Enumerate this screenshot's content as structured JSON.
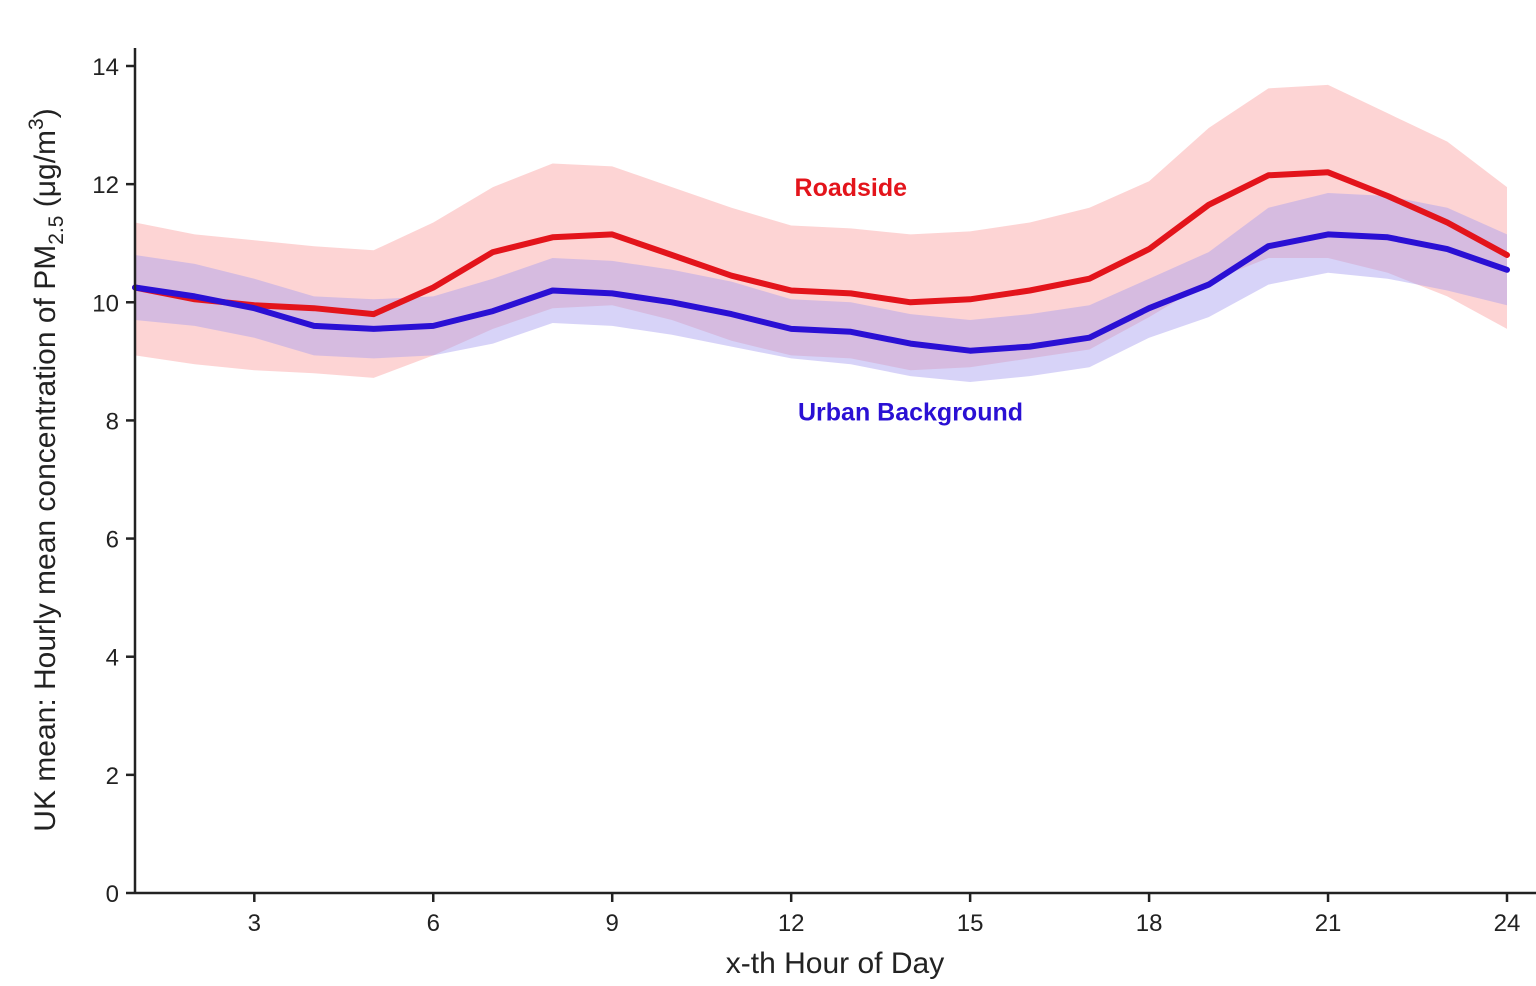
{
  "chart_data": {
    "type": "line",
    "title": "",
    "xlabel": "x-th Hour of Day",
    "ylabel": {
      "prefix": "UK mean: Hourly mean concentration of PM",
      "subscript": "2.5",
      "unit_open": " (μg/m",
      "superscript": "3",
      "unit_close": ")"
    },
    "xlim": [
      1,
      24
    ],
    "ylim": [
      0,
      14
    ],
    "xticks": [
      3,
      6,
      9,
      12,
      15,
      18,
      21,
      24
    ],
    "yticks": [
      0,
      2,
      4,
      6,
      8,
      10,
      12,
      14
    ],
    "grid": false,
    "legend": "none (direct labels)",
    "x": [
      1,
      2,
      3,
      4,
      5,
      6,
      7,
      8,
      9,
      10,
      11,
      12,
      13,
      14,
      15,
      16,
      17,
      18,
      19,
      20,
      21,
      22,
      23,
      24
    ],
    "series": [
      {
        "name": "Roadside",
        "color": "#e3141b",
        "band_color": "#fcc6c6",
        "label_anchor": {
          "x": 13,
          "y": 11.8
        },
        "values": [
          10.25,
          10.05,
          9.95,
          9.9,
          9.8,
          10.25,
          10.85,
          11.1,
          11.15,
          10.8,
          10.45,
          10.2,
          10.15,
          10.0,
          10.05,
          10.2,
          10.4,
          10.9,
          11.65,
          12.15,
          12.2,
          11.8,
          11.35,
          10.8
        ],
        "lower": [
          9.1,
          8.95,
          8.85,
          8.8,
          8.72,
          9.1,
          9.55,
          9.9,
          9.95,
          9.7,
          9.35,
          9.1,
          9.05,
          8.85,
          8.9,
          9.05,
          9.2,
          9.75,
          10.35,
          10.75,
          10.75,
          10.5,
          10.1,
          9.55
        ],
        "upper": [
          11.35,
          11.15,
          11.05,
          10.95,
          10.88,
          11.35,
          11.95,
          12.35,
          12.3,
          11.95,
          11.6,
          11.3,
          11.25,
          11.15,
          11.2,
          11.35,
          11.6,
          12.05,
          12.95,
          13.62,
          13.68,
          13.2,
          12.72,
          11.95
        ]
      },
      {
        "name": "Urban Background",
        "color": "#2a10d4",
        "band_color": "#a79df0",
        "label_anchor": {
          "x": 14,
          "y": 8.0
        },
        "values": [
          10.25,
          10.1,
          9.9,
          9.6,
          9.55,
          9.6,
          9.85,
          10.2,
          10.15,
          10.0,
          9.8,
          9.55,
          9.5,
          9.3,
          9.18,
          9.25,
          9.4,
          9.9,
          10.3,
          10.95,
          11.15,
          11.1,
          10.9,
          10.55
        ],
        "lower": [
          9.7,
          9.6,
          9.4,
          9.1,
          9.05,
          9.1,
          9.3,
          9.65,
          9.6,
          9.45,
          9.25,
          9.05,
          8.95,
          8.75,
          8.65,
          8.75,
          8.9,
          9.4,
          9.75,
          10.3,
          10.5,
          10.4,
          10.2,
          9.95
        ],
        "upper": [
          10.8,
          10.65,
          10.4,
          10.1,
          10.05,
          10.1,
          10.4,
          10.75,
          10.7,
          10.55,
          10.35,
          10.05,
          10.0,
          9.8,
          9.7,
          9.8,
          9.95,
          10.4,
          10.85,
          11.6,
          11.85,
          11.8,
          11.6,
          11.15
        ]
      }
    ]
  }
}
